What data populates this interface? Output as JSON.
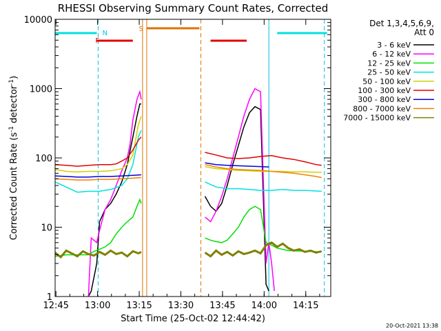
{
  "chart_data": {
    "type": "line",
    "title": "RHESSI Observing Summary Count Rates, Corrected",
    "xlabel": "Start Time (25-Oct-02 12:44:42)",
    "ylabel_main": "Corrected Count Rate (s",
    "ylabel_sup1": "-1",
    "ylabel_mid": " detector",
    "ylabel_sup2": "-1",
    "ylabel_end": ")",
    "y_scale": "log",
    "ylim": [
      1,
      10000
    ],
    "xlim": [
      "12:44:42",
      "14:24:00"
    ],
    "x_ticks": [
      "12:45",
      "13:00",
      "13:15",
      "13:30",
      "13:45",
      "14:00",
      "14:15"
    ],
    "x_tick_minutes": [
      0.3,
      15.3,
      30.3,
      45.3,
      60.3,
      75.3,
      90.3
    ],
    "y_ticks": [
      "1",
      "10",
      "100",
      "1000",
      "10000"
    ],
    "y_tick_values": [
      1,
      10,
      100,
      1000,
      10000
    ],
    "legend_header": [
      "Det 1,3,4,5,6,9,",
      "Att 0"
    ],
    "legend_position": "right",
    "footer": "20-Oct-2021 13:38",
    "annotations": [
      {
        "text": "N",
        "color": "#00c0ff"
      },
      {
        "text": "F",
        "color": "#e00000"
      },
      {
        "text": "S",
        "color": "#e07000"
      }
    ],
    "state_bars": [
      {
        "name": "night",
        "color": "#00e0e0",
        "segments": [
          [
            0,
            15
          ],
          [
            80,
            98
          ]
        ]
      },
      {
        "name": "flare",
        "color": "#e00000",
        "segments": [
          [
            15,
            28
          ],
          [
            56,
            69
          ]
        ]
      },
      {
        "name": "saa",
        "color": "#e07000",
        "segments": [
          [
            33,
            52
          ]
        ]
      }
    ],
    "vlines": [
      {
        "minute": 0,
        "color": "#00e0e0",
        "dash": false
      },
      {
        "minute": 15.5,
        "color": "#00c0e0",
        "dash": true
      },
      {
        "minute": 31.5,
        "color": "#e07000",
        "dash": false
      },
      {
        "minute": 33,
        "color": "#e07000",
        "dash": false
      },
      {
        "minute": 52.5,
        "color": "#e07000",
        "dash": true
      },
      {
        "minute": 77,
        "color": "#00c0e0",
        "dash": false
      },
      {
        "minute": 97,
        "color": "#00c0e0",
        "dash": true
      }
    ],
    "series": [
      {
        "name": "3 - 6 keV",
        "color": "#000000",
        "points": [
          [
            12,
            1
          ],
          [
            13,
            1.2
          ],
          [
            15,
            3
          ],
          [
            16,
            12
          ],
          [
            18,
            18
          ],
          [
            20,
            22
          ],
          [
            22,
            30
          ],
          [
            24,
            45
          ],
          [
            26,
            80
          ],
          [
            28,
            200
          ],
          [
            29.5,
            400
          ],
          [
            30.5,
            600
          ],
          [
            31,
            600
          ],
          [
            54,
            28
          ],
          [
            56,
            20
          ],
          [
            58,
            17
          ],
          [
            60,
            22
          ],
          [
            62,
            40
          ],
          [
            64,
            80
          ],
          [
            66,
            150
          ],
          [
            68,
            280
          ],
          [
            70,
            450
          ],
          [
            72,
            550
          ],
          [
            74,
            500
          ],
          [
            76,
            1.5
          ],
          [
            77,
            1.2
          ]
        ]
      },
      {
        "name": "6 - 12 keV",
        "color": "#ff00ff",
        "points": [
          [
            12,
            1
          ],
          [
            13,
            7
          ],
          [
            15,
            6
          ],
          [
            16,
            9
          ],
          [
            18,
            18
          ],
          [
            20,
            25
          ],
          [
            22,
            40
          ],
          [
            24,
            65
          ],
          [
            26,
            100
          ],
          [
            27,
            160
          ],
          [
            28,
            350
          ],
          [
            29.5,
            700
          ],
          [
            30.5,
            900
          ],
          [
            31,
            700
          ],
          [
            54,
            14
          ],
          [
            56,
            12
          ],
          [
            58,
            17
          ],
          [
            60,
            28
          ],
          [
            62,
            50
          ],
          [
            64,
            100
          ],
          [
            66,
            200
          ],
          [
            68,
            400
          ],
          [
            70,
            700
          ],
          [
            72,
            1000
          ],
          [
            74,
            900
          ],
          [
            76,
            3
          ],
          [
            77,
            6
          ],
          [
            78,
            3
          ],
          [
            79,
            1.2
          ]
        ]
      },
      {
        "name": "12 - 25 keV",
        "color": "#00e000",
        "points": [
          [
            0,
            3.8
          ],
          [
            4,
            4
          ],
          [
            8,
            4
          ],
          [
            12,
            4
          ],
          [
            14,
            4.5
          ],
          [
            16,
            4.8
          ],
          [
            18,
            5.2
          ],
          [
            20,
            6
          ],
          [
            22,
            8
          ],
          [
            24,
            10
          ],
          [
            26,
            12
          ],
          [
            28,
            14
          ],
          [
            29.5,
            20
          ],
          [
            30.5,
            25
          ],
          [
            31,
            22
          ],
          [
            54,
            7
          ],
          [
            56,
            6.5
          ],
          [
            58,
            6.2
          ],
          [
            60,
            6
          ],
          [
            62,
            6.5
          ],
          [
            64,
            8
          ],
          [
            66,
            10
          ],
          [
            68,
            14
          ],
          [
            70,
            18
          ],
          [
            72,
            20
          ],
          [
            74,
            18
          ],
          [
            76,
            6
          ],
          [
            78,
            5.5
          ],
          [
            80,
            5
          ],
          [
            84,
            4.6
          ],
          [
            90,
            4.5
          ],
          [
            96,
            4.4
          ]
        ]
      },
      {
        "name": "25 - 50 keV",
        "color": "#00e0e0",
        "points": [
          [
            0,
            45
          ],
          [
            4,
            38
          ],
          [
            8,
            32
          ],
          [
            12,
            33
          ],
          [
            16,
            33
          ],
          [
            20,
            35
          ],
          [
            24,
            40
          ],
          [
            26,
            50
          ],
          [
            28,
            80
          ],
          [
            30,
            200
          ],
          [
            31,
            250
          ],
          [
            54,
            45
          ],
          [
            58,
            38
          ],
          [
            62,
            36
          ],
          [
            66,
            36
          ],
          [
            70,
            35
          ],
          [
            74,
            34
          ],
          [
            78,
            34
          ],
          [
            82,
            35
          ],
          [
            86,
            34
          ],
          [
            90,
            34
          ],
          [
            96,
            33
          ]
        ]
      },
      {
        "name": "50 - 100 keV",
        "color": "#d0d000",
        "points": [
          [
            0,
            68
          ],
          [
            4,
            64
          ],
          [
            8,
            63
          ],
          [
            12,
            64
          ],
          [
            16,
            64
          ],
          [
            20,
            65
          ],
          [
            24,
            70
          ],
          [
            26,
            80
          ],
          [
            28,
            110
          ],
          [
            30,
            300
          ],
          [
            31,
            400
          ],
          [
            54,
            75
          ],
          [
            58,
            70
          ],
          [
            62,
            68
          ],
          [
            66,
            66
          ],
          [
            70,
            65
          ],
          [
            74,
            64
          ],
          [
            78,
            64
          ],
          [
            82,
            64
          ],
          [
            86,
            63
          ],
          [
            90,
            63
          ],
          [
            96,
            62
          ]
        ]
      },
      {
        "name": "100 - 300 keV",
        "color": "#e00000",
        "points": [
          [
            0,
            80
          ],
          [
            4,
            78
          ],
          [
            8,
            76
          ],
          [
            12,
            78
          ],
          [
            16,
            80
          ],
          [
            20,
            80
          ],
          [
            22,
            82
          ],
          [
            24,
            90
          ],
          [
            26,
            100
          ],
          [
            28,
            130
          ],
          [
            30,
            180
          ],
          [
            31,
            200
          ],
          [
            54,
            120
          ],
          [
            58,
            110
          ],
          [
            62,
            100
          ],
          [
            66,
            98
          ],
          [
            70,
            100
          ],
          [
            74,
            105
          ],
          [
            78,
            108
          ],
          [
            82,
            100
          ],
          [
            86,
            95
          ],
          [
            90,
            88
          ],
          [
            94,
            80
          ],
          [
            96,
            78
          ]
        ]
      },
      {
        "name": "300 - 800 keV",
        "color": "#0000e0",
        "points": [
          [
            0,
            55
          ],
          [
            4,
            54
          ],
          [
            8,
            53
          ],
          [
            12,
            53
          ],
          [
            16,
            54
          ],
          [
            20,
            54
          ],
          [
            24,
            55
          ],
          [
            28,
            56
          ],
          [
            31,
            57
          ],
          [
            54,
            85
          ],
          [
            58,
            80
          ],
          [
            62,
            78
          ],
          [
            66,
            77
          ],
          [
            70,
            76
          ],
          [
            74,
            75
          ],
          [
            77,
            74
          ]
        ]
      },
      {
        "name": "800 - 7000 keV",
        "color": "#f08000",
        "points": [
          [
            0,
            50
          ],
          [
            4,
            49
          ],
          [
            8,
            48
          ],
          [
            12,
            48
          ],
          [
            16,
            49
          ],
          [
            20,
            49
          ],
          [
            24,
            50
          ],
          [
            28,
            51
          ],
          [
            31,
            52
          ],
          [
            54,
            80
          ],
          [
            58,
            74
          ],
          [
            62,
            70
          ],
          [
            66,
            68
          ],
          [
            70,
            67
          ],
          [
            74,
            66
          ],
          [
            78,
            64
          ],
          [
            82,
            62
          ],
          [
            86,
            60
          ],
          [
            90,
            57
          ],
          [
            94,
            54
          ],
          [
            96,
            52
          ]
        ]
      },
      {
        "name": "7000 - 15000 keV",
        "color": "#808000",
        "points": [
          [
            0,
            4.3
          ],
          [
            2,
            3.7
          ],
          [
            4,
            4.6
          ],
          [
            6,
            4.2
          ],
          [
            8,
            3.8
          ],
          [
            10,
            4.5
          ],
          [
            12,
            4.1
          ],
          [
            14,
            3.9
          ],
          [
            16,
            4.4
          ],
          [
            18,
            4
          ],
          [
            20,
            4.6
          ],
          [
            22,
            4.1
          ],
          [
            24,
            4.3
          ],
          [
            26,
            3.8
          ],
          [
            28,
            4.5
          ],
          [
            30,
            4.2
          ],
          [
            31,
            4.4
          ],
          [
            54,
            4.3
          ],
          [
            56,
            3.8
          ],
          [
            58,
            4.6
          ],
          [
            60,
            4
          ],
          [
            62,
            4.4
          ],
          [
            64,
            3.9
          ],
          [
            66,
            4.5
          ],
          [
            68,
            4.1
          ],
          [
            70,
            4.3
          ],
          [
            72,
            4.6
          ],
          [
            74,
            4.2
          ],
          [
            76,
            5.5
          ],
          [
            78,
            6
          ],
          [
            80,
            5.2
          ],
          [
            82,
            5.8
          ],
          [
            84,
            5
          ],
          [
            86,
            4.6
          ],
          [
            88,
            4.8
          ],
          [
            90,
            4.4
          ],
          [
            92,
            4.6
          ],
          [
            94,
            4.3
          ],
          [
            96,
            4.5
          ]
        ]
      }
    ]
  }
}
